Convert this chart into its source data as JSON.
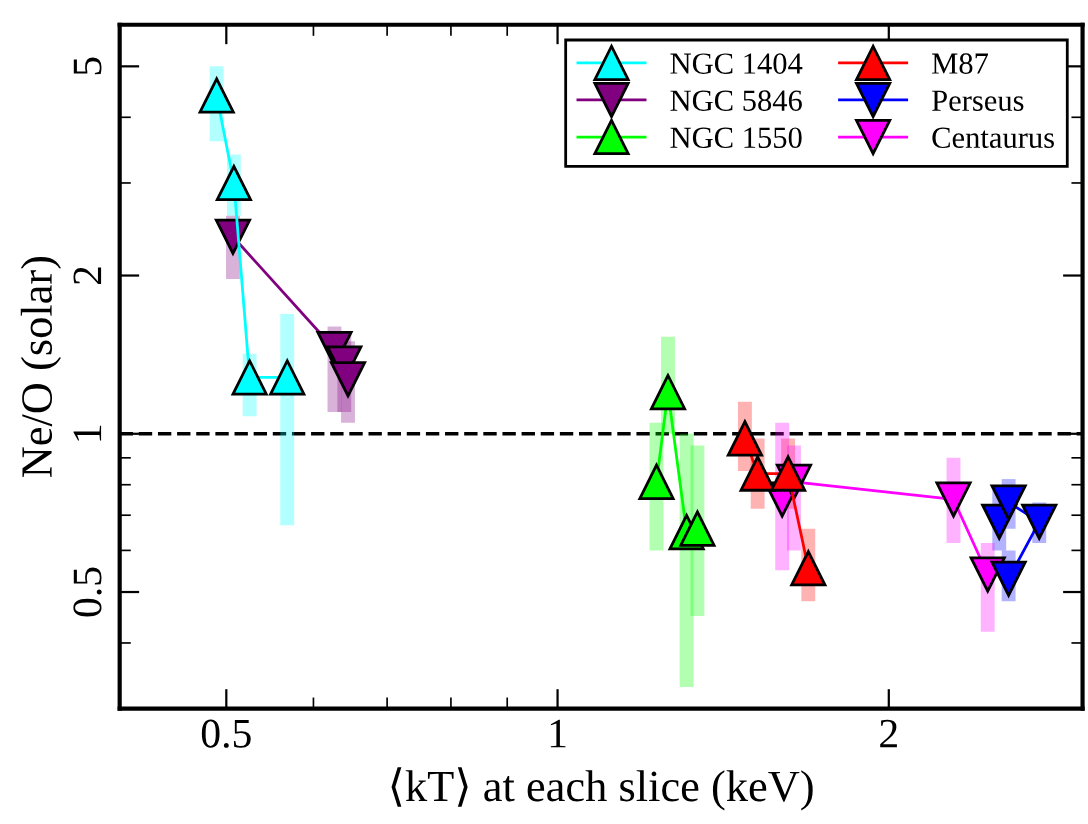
{
  "chart_data": {
    "type": "line",
    "xlabel": "⟨kT⟩ at each slice (keV)",
    "ylabel": "Ne/O (solar)",
    "log": "xy",
    "xlim": [
      0.4,
      3
    ],
    "ylim": [
      0.3,
      6
    ],
    "xticks": [
      0.5,
      1,
      2
    ],
    "yticks": [
      0.5,
      1,
      2,
      5
    ],
    "grid": false,
    "legend": "top right",
    "line_style": "solid",
    "ref_lines": [
      {
        "axis": "y",
        "value": 1,
        "color": "#000000",
        "line_style": "dashed"
      }
    ],
    "series": [
      {
        "name": "NGC 1404",
        "color": "#00ffff",
        "marker": "triangle",
        "x": [
          0.49,
          0.508,
          0.525,
          0.568
        ],
        "values": [
          4.4,
          3.0,
          1.28,
          1.28
        ],
        "errors": [
          [
            3.6,
            5.0
          ],
          [
            2.6,
            3.4
          ],
          [
            1.08,
            1.42
          ],
          [
            0.67,
            1.69
          ]
        ]
      },
      {
        "name": "NGC 5846",
        "color": "#800080",
        "marker": "triangle_down",
        "x": [
          0.507,
          0.627,
          0.64,
          0.645
        ],
        "values": [
          2.37,
          1.45,
          1.36,
          1.27
        ],
        "errors": [
          [
            1.97,
            2.6
          ],
          [
            1.1,
            1.6
          ],
          [
            1.1,
            1.55
          ],
          [
            1.05,
            1.5
          ]
        ]
      },
      {
        "name": "NGC 1550",
        "color": "#00ff00",
        "marker": "triangle",
        "x": [
          1.23,
          1.26,
          1.31,
          1.34
        ],
        "values": [
          0.81,
          1.2,
          0.65,
          0.66
        ],
        "errors": [
          [
            0.6,
            1.05
          ],
          [
            1.0,
            1.53
          ],
          [
            0.33,
            1.0
          ],
          [
            0.45,
            0.95
          ]
        ]
      },
      {
        "name": "M87",
        "color": "#ff0000",
        "marker": "triangle",
        "x": [
          1.48,
          1.52,
          1.62,
          1.69
        ],
        "values": [
          0.98,
          0.84,
          0.84,
          0.555
        ],
        "errors": [
          [
            0.85,
            1.15
          ],
          [
            0.72,
            0.98
          ],
          [
            0.72,
            0.98
          ],
          [
            0.48,
            0.66
          ]
        ]
      },
      {
        "name": "Perseus",
        "color": "#0000ff",
        "marker": "triangle_down",
        "x": [
          2.52,
          2.57,
          2.74,
          2.57
        ],
        "values": [
          0.68,
          0.74,
          0.68,
          0.53
        ],
        "errors": [
          [
            0.6,
            0.78
          ],
          [
            0.66,
            0.82
          ],
          [
            0.62,
            0.74
          ],
          [
            0.48,
            0.6
          ]
        ]
      },
      {
        "name": "Centaurus",
        "color": "#ff00ff",
        "marker": "triangle_down",
        "x": [
          1.6,
          1.64,
          2.29,
          2.46
        ],
        "values": [
          0.75,
          0.81,
          0.75,
          0.54
        ],
        "errors": [
          [
            0.55,
            1.05
          ],
          [
            0.6,
            0.95
          ],
          [
            0.62,
            0.9
          ],
          [
            0.42,
            0.62
          ]
        ]
      }
    ]
  }
}
